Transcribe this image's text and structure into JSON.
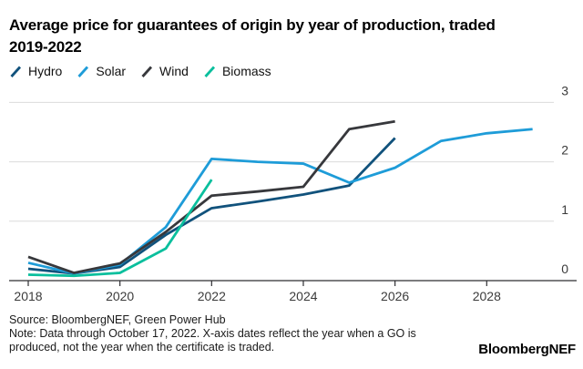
{
  "header": {
    "title_line1": "Average price for guarantees of origin by year of production, traded",
    "title_line2": "2019-2022"
  },
  "footer": {
    "source": "Source: BloombergNEF, Green Power Hub",
    "note": "Note: Data through October 17, 2022. X-axis dates reflect the year when a GO is produced, not the year when the certificate is traded.",
    "logo": "BloombergNEF"
  },
  "chart_data": {
    "type": "line",
    "title": "Average price for guarantees of origin by year of production, traded 2019-2022",
    "xlabel": "",
    "ylabel": "",
    "xlim": [
      2017.6,
      2029.9
    ],
    "ylim": [
      0,
      3
    ],
    "xticks": [
      2018,
      2020,
      2022,
      2024,
      2026,
      2028
    ],
    "yticks": [
      0,
      1,
      2,
      3
    ],
    "grid": "horizontal",
    "legend_position": "top-left",
    "y_axis_side": "right",
    "style": {
      "grid_color": "#DCDCDC",
      "axis_color": "#2E2E32",
      "tick_color": "#3B3B3B",
      "line_width": 2.8
    },
    "series": [
      {
        "name": "Hydro",
        "color": "#11527C",
        "x": [
          2018,
          2019,
          2020,
          2021,
          2022,
          2023,
          2024,
          2025,
          2026
        ],
        "values": [
          0.2,
          0.12,
          0.23,
          0.77,
          1.22,
          1.33,
          1.45,
          1.6,
          2.4
        ]
      },
      {
        "name": "Solar",
        "color": "#1E9CD8",
        "x": [
          2018,
          2019,
          2020,
          2021,
          2022,
          2023,
          2024,
          2025,
          2026,
          2027,
          2028,
          2029
        ],
        "values": [
          0.3,
          0.12,
          0.27,
          0.9,
          2.05,
          2.0,
          1.97,
          1.65,
          1.9,
          2.35,
          2.48,
          2.55
        ]
      },
      {
        "name": "Wind",
        "color": "#37383C",
        "x": [
          2018,
          2019,
          2020,
          2021,
          2022,
          2023,
          2024,
          2025,
          2026
        ],
        "values": [
          0.4,
          0.13,
          0.29,
          0.82,
          1.43,
          1.5,
          1.58,
          2.55,
          2.68
        ]
      },
      {
        "name": "Biomass",
        "color": "#0ABF9D",
        "x": [
          2018,
          2019,
          2020,
          2021,
          2022
        ],
        "values": [
          0.1,
          0.08,
          0.13,
          0.54,
          1.7
        ]
      }
    ]
  }
}
